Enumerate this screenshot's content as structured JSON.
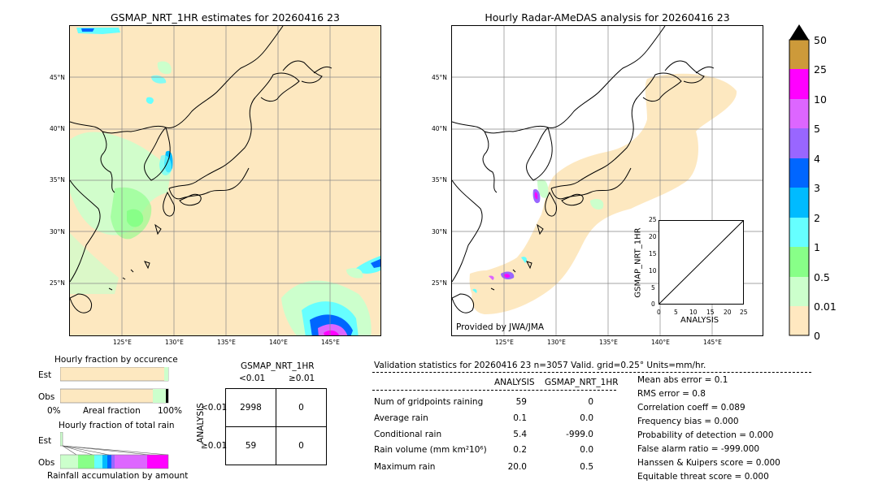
{
  "map_left": {
    "title": "GSMAP_NRT_1HR estimates for 20260416 23",
    "lat_labels": [
      "45°N",
      "40°N",
      "35°N",
      "30°N",
      "25°N"
    ],
    "lon_labels": [
      "125°E",
      "130°E",
      "135°E",
      "140°E",
      "145°E"
    ]
  },
  "map_right": {
    "title": "Hourly Radar-AMeDAS analysis for 20260416 23",
    "lat_labels": [
      "45°N",
      "40°N",
      "35°N",
      "30°N",
      "25°N"
    ],
    "lon_labels": [
      "125°E",
      "130°E",
      "135°E",
      "140°E",
      "145°E"
    ],
    "credit": "Provided by JWA/JMA"
  },
  "inset_scatter": {
    "ylabel": "GSMAP_NRT_1HR",
    "xlabel": "ANALYSIS",
    "ticks": [
      "0",
      "5",
      "10",
      "15",
      "20",
      "25"
    ]
  },
  "colorbar": {
    "labels": [
      "50",
      "25",
      "10",
      "5",
      "4",
      "3",
      "2",
      "1",
      "0.5",
      "0.01",
      "0"
    ],
    "colors": [
      "#cd9a3a",
      "#ff00ff",
      "#dd66ff",
      "#9966ff",
      "#0066ff",
      "#00bbff",
      "#66ffff",
      "#88ff88",
      "#ccffcc",
      "#ffe8c0"
    ]
  },
  "fraction_occurrence": {
    "title": "Hourly fraction by occurence",
    "rows": [
      "Est",
      "Obs"
    ],
    "axis_left": "0%",
    "axis_mid": "Areal fraction",
    "axis_right": "100%"
  },
  "fraction_total": {
    "title": "Hourly fraction of total rain",
    "rows": [
      "Est",
      "Obs"
    ],
    "axis_label": "Rainfall accumulation by amount"
  },
  "contingency": {
    "title": "GSMAP_NRT_1HR",
    "col_labels": [
      "<0.01",
      "≥0.01"
    ],
    "row_title": "ANALYSIS",
    "row_labels": [
      "<0.01",
      "≥0.01"
    ],
    "cells": [
      [
        "2998",
        "0"
      ],
      [
        "59",
        "0"
      ]
    ]
  },
  "validation": {
    "header": "Validation statistics for 20260416 23  n=3057 Valid. grid=0.25°  Units=mm/hr.",
    "col_analysis": "ANALYSIS",
    "col_gsmap": "GSMAP_NRT_1HR",
    "rows": [
      {
        "label": "Num of gridpoints raining",
        "a": "59",
        "g": "0"
      },
      {
        "label": "Average rain",
        "a": "0.1",
        "g": "0.0"
      },
      {
        "label": "Conditional rain",
        "a": "5.4",
        "g": "-999.0"
      },
      {
        "label": "Rain volume (mm km²10⁶)",
        "a": "0.2",
        "g": "0.0"
      },
      {
        "label": "Maximum rain",
        "a": "20.0",
        "g": "0.5"
      }
    ],
    "scores": [
      "Mean abs error =    0.1",
      "RMS error =    0.8",
      "Correlation coeff =  0.089",
      "Frequency bias =  0.000",
      "Probability of detection =  0.000",
      "False alarm ratio = -999.000",
      "Hanssen & Kuipers score =  0.000",
      "Equitable threat score =  0.000"
    ]
  },
  "chart_data": {
    "type": "table",
    "title": "Validation statistics for 20260416 23",
    "contingency": {
      "rows": [
        "<0.01",
        "≥0.01"
      ],
      "cols": [
        "<0.01",
        "≥0.01"
      ],
      "values": [
        [
          2998,
          0
        ],
        [
          59,
          0
        ]
      ]
    },
    "stats": {
      "num_gridpoints_raining": {
        "analysis": 59,
        "gsmap": 0
      },
      "average_rain": {
        "analysis": 0.1,
        "gsmap": 0.0
      },
      "conditional_rain": {
        "analysis": 5.4,
        "gsmap": -999.0
      },
      "rain_volume": {
        "analysis": 0.2,
        "gsmap": 0.0
      },
      "maximum_rain": {
        "analysis": 20.0,
        "gsmap": 0.5
      }
    },
    "scores": {
      "mean_abs_error": 0.1,
      "rms_error": 0.8,
      "correlation": 0.089,
      "frequency_bias": 0.0,
      "pod": 0.0,
      "far": -999.0,
      "hk": 0.0,
      "ets": 0.0
    }
  }
}
